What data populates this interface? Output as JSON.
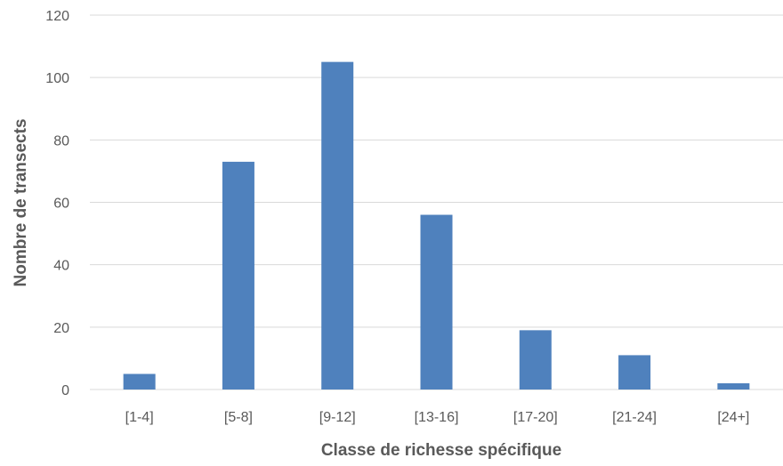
{
  "chart_data": {
    "type": "bar",
    "categories": [
      "[1-4]",
      "[5-8]",
      "[9-12]",
      "[13-16]",
      "[17-20]",
      "[21-24]",
      "[24+]"
    ],
    "values": [
      5,
      73,
      105,
      56,
      19,
      11,
      2
    ],
    "xlabel": "Classe de richesse spécifique",
    "ylabel": "Nombre de transects",
    "ylim": [
      0,
      120
    ],
    "yticks": [
      "0",
      "20",
      "40",
      "60",
      "80",
      "100",
      "120"
    ],
    "grid": true,
    "legend": "none",
    "bar_color": "#4f81bd"
  }
}
